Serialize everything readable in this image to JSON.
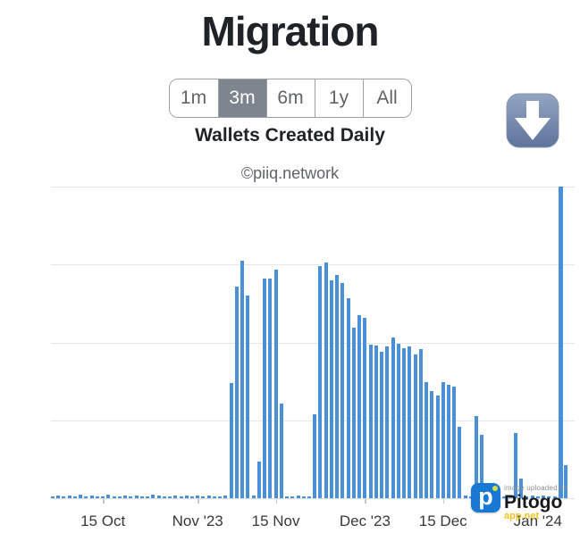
{
  "header": {
    "title": "Migration",
    "subtitle": "Wallets Created Daily",
    "watermark": "©piiq.network",
    "range_buttons": [
      {
        "label": "1m",
        "selected": false
      },
      {
        "label": "3m",
        "selected": true
      },
      {
        "label": "6m",
        "selected": false
      },
      {
        "label": "1y",
        "selected": false
      },
      {
        "label": "All",
        "selected": false
      }
    ]
  },
  "footer_watermark": {
    "small_text": "image uploaded on",
    "brand": "Pitogo",
    "sub_text": "app.net"
  },
  "colors": {
    "bar": "#4a90d8",
    "selected_button_bg": "#7d868f",
    "gridline": "#e4e6e9",
    "title_text": "#1f2328",
    "watermark_text": "#5f6368"
  },
  "chart_data": {
    "type": "bar",
    "title": "Wallets Created Daily",
    "xlabel": "",
    "ylabel": "",
    "grid": true,
    "legend": false,
    "ylim": [
      0,
      1000
    ],
    "x_tick_labels": [
      "15 Oct",
      "Nov '23",
      "15 Nov",
      "Dec '23",
      "15 Dec",
      "Jan '24"
    ],
    "x_tick_indices": [
      9,
      26,
      40,
      56,
      70,
      87
    ],
    "x": [
      "Oct 6",
      "Oct 7",
      "Oct 8",
      "Oct 9",
      "Oct 10",
      "Oct 11",
      "Oct 12",
      "Oct 13",
      "Oct 14",
      "Oct 15",
      "Oct 16",
      "Oct 17",
      "Oct 18",
      "Oct 19",
      "Oct 20",
      "Oct 21",
      "Oct 22",
      "Oct 23",
      "Oct 24",
      "Oct 25",
      "Oct 26",
      "Oct 27",
      "Oct 28",
      "Oct 29",
      "Oct 30",
      "Oct 31",
      "Nov 1",
      "Nov 2",
      "Nov 3",
      "Nov 4",
      "Nov 5",
      "Nov 6",
      "Nov 7",
      "Nov 8",
      "Nov 9",
      "Nov 10",
      "Nov 11",
      "Nov 12",
      "Nov 13",
      "Nov 14",
      "Nov 15",
      "Nov 16",
      "Nov 17",
      "Nov 18",
      "Nov 19",
      "Nov 20",
      "Nov 21",
      "Nov 22",
      "Nov 23",
      "Nov 24",
      "Nov 25",
      "Nov 26",
      "Nov 27",
      "Nov 28",
      "Nov 29",
      "Nov 30",
      "Dec 1",
      "Dec 2",
      "Dec 3",
      "Dec 4",
      "Dec 5",
      "Dec 6",
      "Dec 7",
      "Dec 8",
      "Dec 9",
      "Dec 10",
      "Dec 11",
      "Dec 12",
      "Dec 13",
      "Dec 14",
      "Dec 15",
      "Dec 16",
      "Dec 17",
      "Dec 18",
      "Dec 19",
      "Dec 20",
      "Dec 21",
      "Dec 22",
      "Dec 23",
      "Dec 24",
      "Dec 25",
      "Dec 26",
      "Dec 27",
      "Dec 28",
      "Dec 29",
      "Dec 30",
      "Dec 31",
      "Jan 1",
      "Jan 2",
      "Jan 3",
      "Jan 4",
      "Jan 5",
      "Jan 6"
    ],
    "values": [
      6,
      8,
      7,
      9,
      6,
      11,
      7,
      8,
      6,
      7,
      12,
      7,
      6,
      8,
      7,
      9,
      6,
      7,
      11,
      8,
      6,
      7,
      9,
      6,
      8,
      7,
      8,
      6,
      9,
      7,
      6,
      8,
      370,
      680,
      763,
      650,
      9,
      118,
      705,
      705,
      733,
      304,
      7,
      6,
      8,
      7,
      6,
      270,
      745,
      757,
      699,
      717,
      691,
      642,
      548,
      588,
      579,
      493,
      490,
      470,
      488,
      516,
      496,
      482,
      488,
      462,
      479,
      373,
      344,
      330,
      373,
      364,
      359,
      230,
      8,
      6,
      264,
      204,
      7,
      9,
      6,
      7,
      8,
      210,
      64,
      7,
      9,
      6,
      8,
      7,
      6,
      1000,
      107
    ]
  }
}
